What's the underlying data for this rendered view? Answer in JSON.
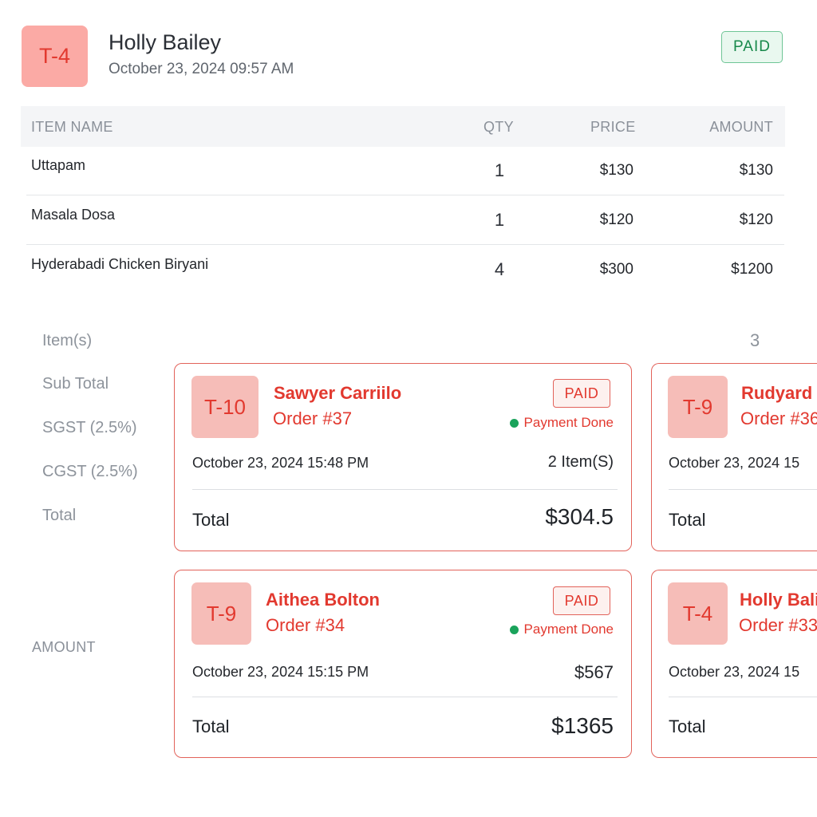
{
  "header": {
    "table_badge": "T-4",
    "customer_name": "Holly Bailey",
    "datetime": "October 23, 2024 09:57 AM",
    "status": "PAID"
  },
  "items_table": {
    "columns": [
      "ITEM NAME",
      "QTY",
      "PRICE",
      "AMOUNT"
    ],
    "rows": [
      {
        "name": "Uttapam",
        "qty": "1",
        "price": "$130",
        "amount": "$130"
      },
      {
        "name": "Masala Dosa",
        "qty": "1",
        "price": "$120",
        "amount": "$120"
      },
      {
        "name": "Hyderabadi Chicken Biryani",
        "qty": "4",
        "price": "$300",
        "amount": "$1200"
      }
    ]
  },
  "summary": {
    "items_label": "Item(s)",
    "items_count": "3",
    "subtotal_label": "Sub Total",
    "sgst_label": "SGST (2.5%)",
    "cgst_label": "CGST (2.5%)",
    "total_label": "Total",
    "amount_label": "AMOUNT"
  },
  "orders": [
    {
      "table": "T-10",
      "customer": "Sawyer Carriilo",
      "order": "Order #37",
      "status": "PAID",
      "payment": "Payment Done",
      "datetime": "October 23, 2024 15:48 PM",
      "meta": "2 Item(S)",
      "total_label": "Total",
      "total": "$304.5"
    },
    {
      "table": "T-9",
      "customer": "Rudyard",
      "order": "Order #36",
      "datetime": "October 23, 2024 15",
      "total_label": "Total"
    },
    {
      "table": "T-9",
      "customer": "Aithea Bolton",
      "order": "Order #34",
      "status": "PAID",
      "payment": "Payment Done",
      "datetime": "October 23, 2024 15:15 PM",
      "meta": "$567",
      "total_label": "Total",
      "total": "$1365"
    },
    {
      "table": "T-4",
      "customer": "Holly Bali",
      "order": "Order #33",
      "datetime": "October 23, 2024 15",
      "total_label": "Total"
    }
  ],
  "colors": {
    "accent_red": "#e2392f",
    "badge_bg": "#f6bdb8",
    "paid_green": "#17894a",
    "payment_dot": "#1aa35b"
  }
}
